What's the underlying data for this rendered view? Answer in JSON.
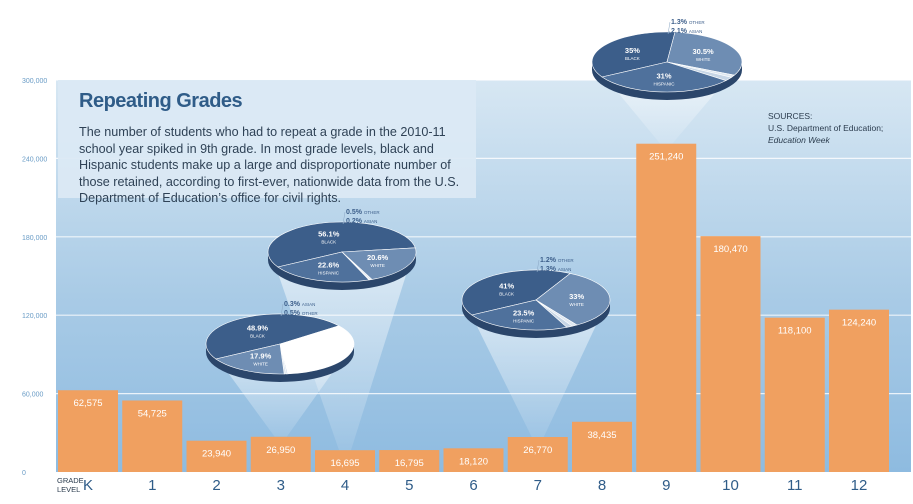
{
  "chart_data": {
    "type": "bar",
    "title": "Repeating Grades",
    "subtitle": "The number of students who had to repeat a grade in the 2010-11 school year spiked in 9th grade. In most grade levels, black and Hispanic students make up a large and disproportionate number of those retained, according to first-ever, nationwide data from the U.S. Department of Education’s office for civil rights.",
    "xlabel": "GRADE LEVEL",
    "ylabel": "",
    "categories": [
      "K",
      "1",
      "2",
      "3",
      "4",
      "5",
      "6",
      "7",
      "8",
      "9",
      "10",
      "11",
      "12"
    ],
    "values": [
      62575,
      54725,
      23940,
      26950,
      16695,
      16795,
      18120,
      26770,
      38435,
      251240,
      180470,
      118100,
      124240
    ],
    "value_labels": [
      "62,575",
      "54,725",
      "23,940",
      "26,950",
      "16,695",
      "16,795",
      "18,120",
      "26,770",
      "38,435",
      "251,240",
      "180,470",
      "118,100",
      "124,240"
    ],
    "ylim": [
      0,
      300000
    ],
    "yticks": [
      0,
      60000,
      120000,
      180000,
      240000,
      300000
    ],
    "ytick_labels": [
      "0",
      "60,000",
      "120,000",
      "180,000",
      "240,000",
      "300,000"
    ],
    "grid": true,
    "bar_color": "#f0a060",
    "pies": [
      {
        "grade": "3",
        "slices": [
          {
            "name": "BLACK",
            "value": 48.9,
            "label": "48.9%",
            "color": "#3c5e8a"
          },
          {
            "name": "HISPANIC",
            "value": 34.3,
            "label": "",
            "color": "#ffffff"
          },
          {
            "name": "ASIAN",
            "value": 0.3,
            "label": "0.3%",
            "color": "#c7d6e6"
          },
          {
            "name": "OTHER",
            "value": 0.5,
            "label": "0.5%",
            "color": "#dfe8f1"
          },
          {
            "name": "WHITE",
            "value": 17.9,
            "label": "17.9%",
            "color": "#6e8db3"
          }
        ]
      },
      {
        "grade": "4",
        "slices": [
          {
            "name": "BLACK",
            "value": 56.1,
            "label": "56.1%",
            "color": "#3c5e8a"
          },
          {
            "name": "WHITE",
            "value": 20.6,
            "label": "20.6%",
            "color": "#6e8db3"
          },
          {
            "name": "OTHER",
            "value": 0.5,
            "label": "0.5%",
            "color": "#dfe8f1"
          },
          {
            "name": "ASIAN",
            "value": 0.2,
            "label": "0.2%",
            "color": "#c7d6e6"
          },
          {
            "name": "HISPANIC",
            "value": 22.6,
            "label": "22.6%",
            "color": "#4f719c"
          }
        ]
      },
      {
        "grade": "7",
        "slices": [
          {
            "name": "BLACK",
            "value": 41,
            "label": "41%",
            "color": "#3c5e8a"
          },
          {
            "name": "WHITE",
            "value": 33,
            "label": "33%",
            "color": "#6e8db3"
          },
          {
            "name": "OTHER",
            "value": 1.2,
            "label": "1.2%",
            "color": "#dfe8f1"
          },
          {
            "name": "ASIAN",
            "value": 1.3,
            "label": "1.3%",
            "color": "#c7d6e6"
          },
          {
            "name": "HISPANIC",
            "value": 23.5,
            "label": "23.5%",
            "color": "#4f719c"
          }
        ]
      },
      {
        "grade": "9",
        "slices": [
          {
            "name": "BLACK",
            "value": 35,
            "label": "35%",
            "color": "#3c5e8a"
          },
          {
            "name": "WHITE",
            "value": 30.5,
            "label": "30.5%",
            "color": "#6e8db3"
          },
          {
            "name": "OTHER",
            "value": 1.3,
            "label": "1.3%",
            "color": "#dfe8f1"
          },
          {
            "name": "ASIAN",
            "value": 2.1,
            "label": "2.1%",
            "color": "#c7d6e6"
          },
          {
            "name": "HISPANIC",
            "value": 31,
            "label": "31%",
            "color": "#4f719c"
          }
        ]
      }
    ]
  },
  "sources": {
    "heading": "SOURCES:",
    "line1": "U.S. Department of Education;",
    "line2": "Education Week"
  }
}
